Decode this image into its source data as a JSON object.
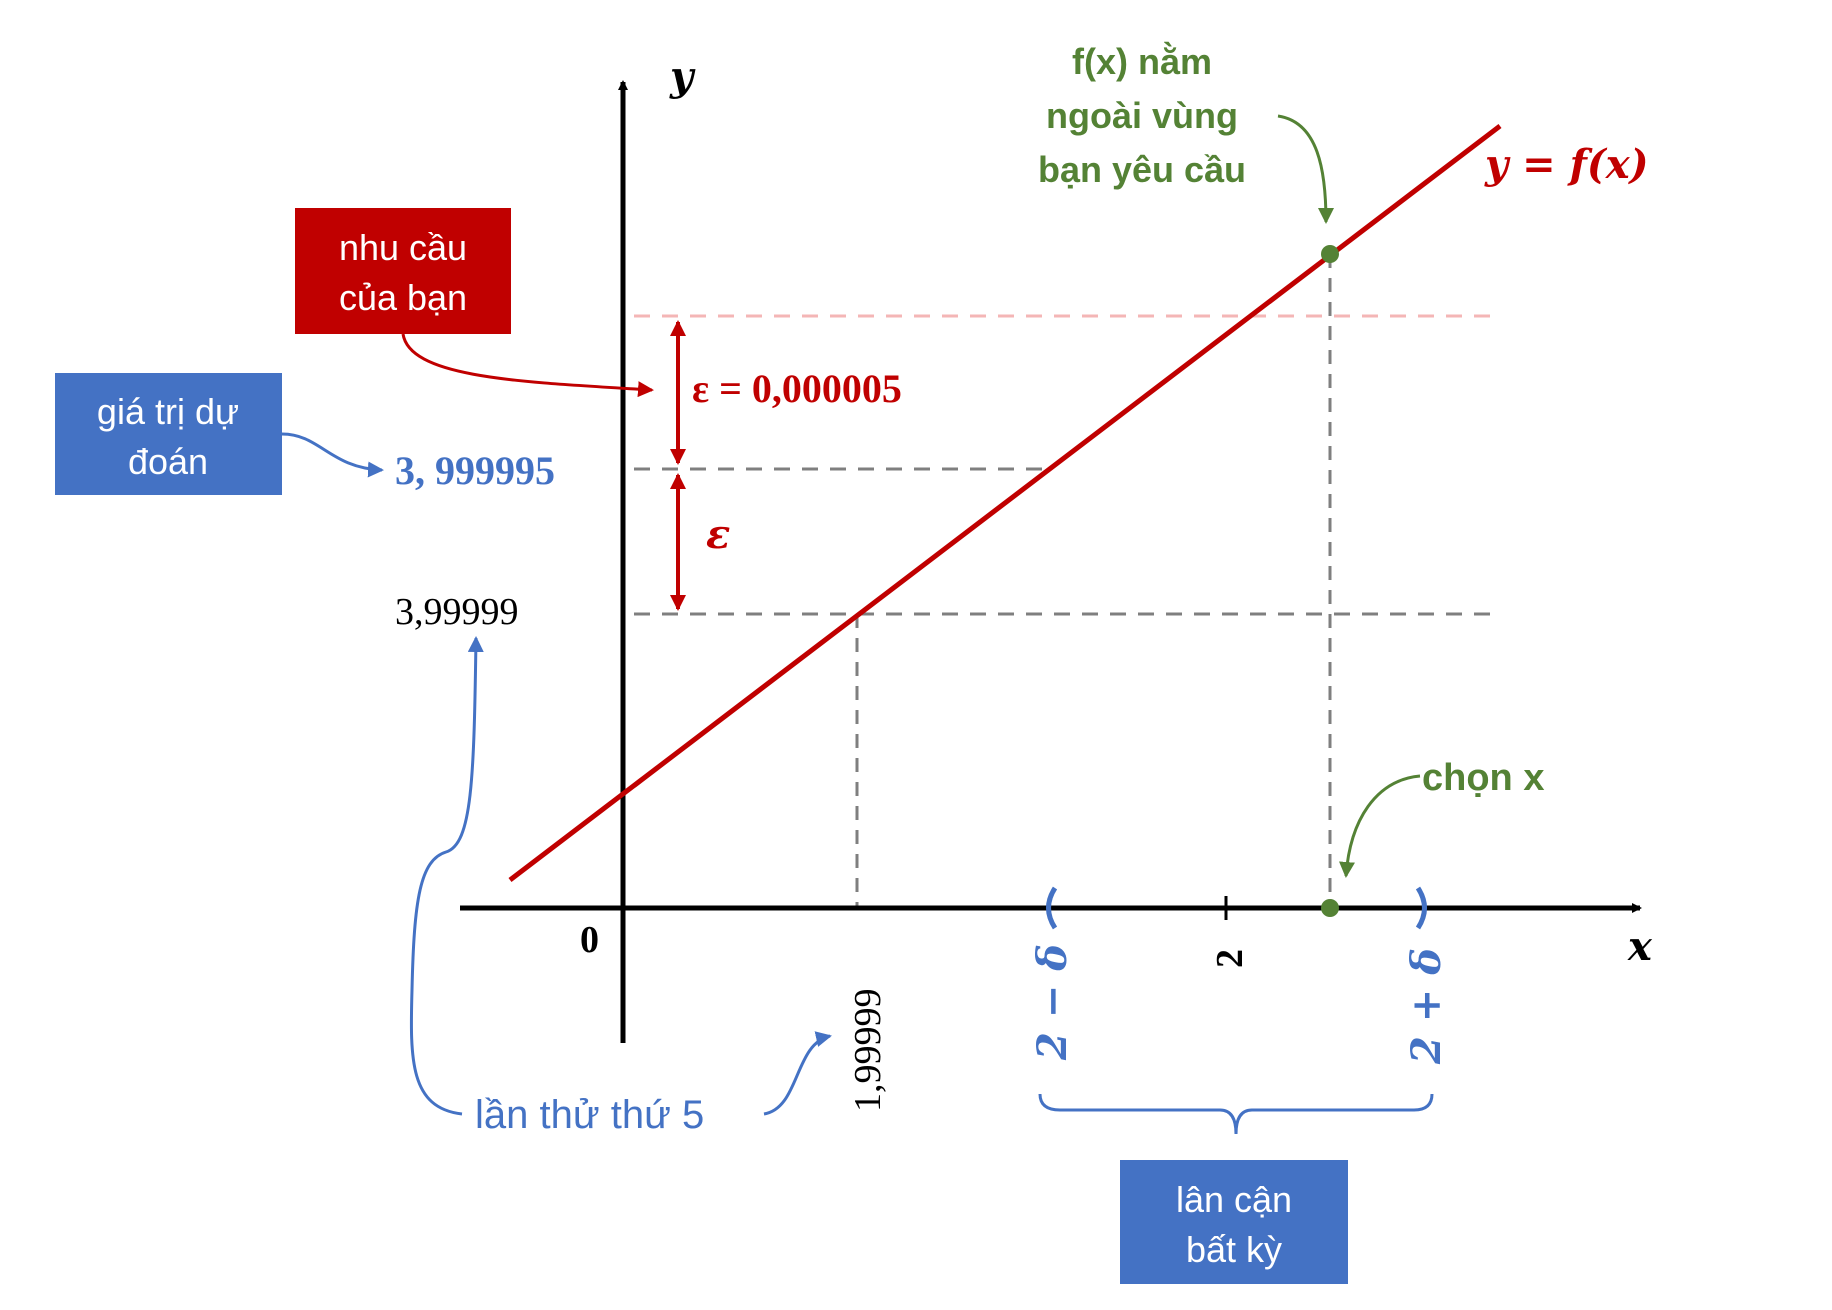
{
  "axes": {
    "x_label": "x",
    "y_label": "y",
    "origin_label": "0"
  },
  "curve": {
    "label": "y = f(x)"
  },
  "y_marks": {
    "predicted": "3, 999995",
    "attempt": "3,99999"
  },
  "x_marks": {
    "attempt": "1,99999",
    "center": "2",
    "left_bound": "2 − δ",
    "right_bound": "2 + δ"
  },
  "epsilon": {
    "upper_label": "ε = 0,000005",
    "lower_label": "ε"
  },
  "annotations": {
    "requirement": [
      "nhu cầu",
      "của bạn"
    ],
    "predicted": [
      "giá trị dự",
      "đoán"
    ],
    "outside": [
      "f(x) nằm",
      "ngoài vùng",
      "bạn yêu cầu"
    ],
    "choose_x": "chọn x",
    "attempt": "lần thử thứ 5",
    "neighborhood": [
      "lân cận",
      "bất kỳ"
    ]
  },
  "colors": {
    "curve": "#c00000",
    "blue": "#4472c4",
    "green": "#548235",
    "box_red": "#c00000",
    "box_blue": "#4472c4",
    "guide": "#7f7f7f",
    "guide_light": "#f4b6b6",
    "axis": "#000000"
  }
}
